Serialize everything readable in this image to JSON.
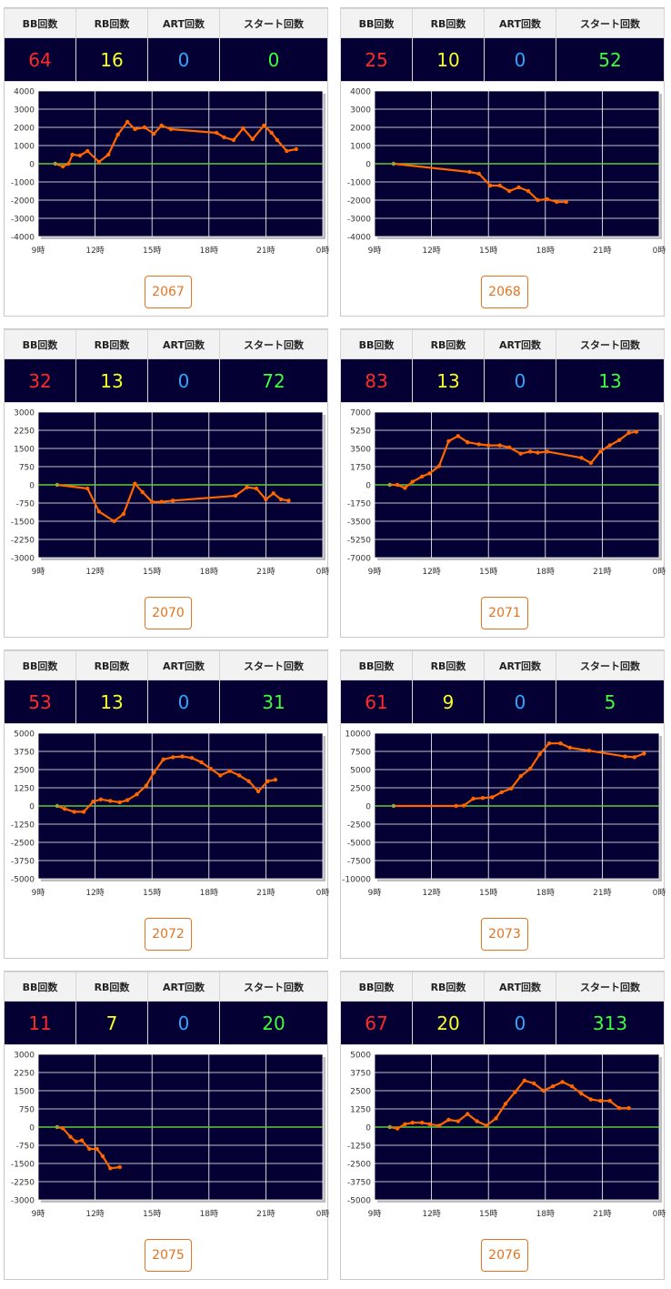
{
  "headers": {
    "bb": "BB回数",
    "rb": "RB回数",
    "art": "ART回数",
    "start": "スタート回数"
  },
  "x_axis": {
    "ticks": [
      "9時",
      "12時",
      "15時",
      "18時",
      "21時",
      "0時"
    ],
    "range": [
      9,
      24
    ]
  },
  "colors": {
    "plot_bg": "#040033",
    "line": "#ff6600",
    "zero_line": "#5ccc3a",
    "grid": "#ffffff"
  },
  "machines": [
    {
      "bb": "64",
      "rb": "16",
      "art": "0",
      "start": "0",
      "button": "2067",
      "chart_data": {
        "type": "line",
        "ylim": [
          -4000,
          4000
        ],
        "y_ticks": [
          "4000",
          "3000",
          "2000",
          "1000",
          "0",
          "-1000",
          "-2000",
          "-3000",
          "-4000"
        ],
        "x": [
          9.9,
          10.3,
          10.6,
          10.8,
          11.2,
          11.6,
          12.2,
          12.7,
          13.2,
          13.7,
          14.1,
          14.6,
          15.1,
          15.5,
          16.0,
          18.4,
          18.8,
          19.3,
          19.8,
          20.3,
          20.9,
          21.3,
          21.6,
          22.1,
          22.6
        ],
        "y": [
          0,
          -150,
          0,
          500,
          450,
          700,
          100,
          500,
          1600,
          2300,
          1900,
          2000,
          1650,
          2100,
          1900,
          1700,
          1450,
          1300,
          1950,
          1350,
          2100,
          1700,
          1300,
          700,
          800
        ]
      }
    },
    {
      "bb": "25",
      "rb": "10",
      "art": "0",
      "start": "52",
      "button": "2068",
      "chart_data": {
        "type": "line",
        "ylim": [
          -4000,
          4000
        ],
        "y_ticks": [
          "4000",
          "3000",
          "2000",
          "1000",
          "0",
          "-1000",
          "-2000",
          "-3000",
          "-4000"
        ],
        "x": [
          10.0,
          14.0,
          14.5,
          15.1,
          15.6,
          16.1,
          16.6,
          17.1,
          17.6,
          18.1,
          18.6,
          19.1
        ],
        "y": [
          0,
          -450,
          -550,
          -1200,
          -1200,
          -1500,
          -1300,
          -1500,
          -2000,
          -1950,
          -2100,
          -2100
        ]
      }
    },
    {
      "bb": "32",
      "rb": "13",
      "art": "0",
      "start": "72",
      "button": "2070",
      "chart_data": {
        "type": "line",
        "ylim": [
          -3000,
          3000
        ],
        "y_ticks": [
          "3000",
          "2250",
          "1500",
          "750",
          "0",
          "-750",
          "-1500",
          "-2250",
          "-3000"
        ],
        "x": [
          10.0,
          11.6,
          12.2,
          13.0,
          13.5,
          14.1,
          14.5,
          15.0,
          15.5,
          16.1,
          19.4,
          20.0,
          20.5,
          21.0,
          21.4,
          21.8,
          22.2
        ],
        "y": [
          0,
          -150,
          -1100,
          -1500,
          -1200,
          50,
          -300,
          -700,
          -700,
          -650,
          -450,
          -100,
          -150,
          -600,
          -350,
          -600,
          -650
        ]
      }
    },
    {
      "bb": "83",
      "rb": "13",
      "art": "0",
      "start": "13",
      "button": "2071",
      "chart_data": {
        "type": "line",
        "ylim": [
          -7000,
          7000
        ],
        "y_ticks": [
          "7000",
          "5250",
          "3500",
          "1750",
          "0",
          "-1750",
          "-3500",
          "-5250",
          "-7000"
        ],
        "x": [
          9.8,
          10.2,
          10.6,
          11.0,
          11.5,
          11.9,
          12.4,
          12.9,
          13.4,
          13.9,
          14.5,
          15.0,
          15.6,
          16.1,
          16.7,
          17.2,
          17.6,
          18.1,
          19.9,
          20.4,
          20.9,
          21.4,
          21.9,
          22.4,
          22.8
        ],
        "y": [
          0,
          0,
          -300,
          300,
          800,
          1100,
          1800,
          4200,
          4700,
          4100,
          3900,
          3800,
          3800,
          3600,
          3000,
          3200,
          3100,
          3200,
          2600,
          2100,
          3200,
          3800,
          4300,
          5000,
          5100
        ]
      }
    },
    {
      "bb": "53",
      "rb": "13",
      "art": "0",
      "start": "31",
      "button": "2072",
      "chart_data": {
        "type": "line",
        "ylim": [
          -5000,
          5000
        ],
        "y_ticks": [
          "5000",
          "3750",
          "2500",
          "1250",
          "0",
          "-1250",
          "-2500",
          "-3750",
          "-5000"
        ],
        "x": [
          10.0,
          10.4,
          10.9,
          11.4,
          11.9,
          12.3,
          12.8,
          13.3,
          13.7,
          14.2,
          14.7,
          15.1,
          15.6,
          16.1,
          16.6,
          17.1,
          17.6,
          18.1,
          18.6,
          19.1,
          19.6,
          20.1,
          20.6,
          21.1,
          21.5
        ],
        "y": [
          0,
          -200,
          -400,
          -400,
          300,
          450,
          350,
          250,
          400,
          800,
          1400,
          2300,
          3200,
          3350,
          3400,
          3300,
          3000,
          2550,
          2100,
          2400,
          2100,
          1700,
          1000,
          1700,
          1800
        ]
      }
    },
    {
      "bb": "61",
      "rb": "9",
      "art": "0",
      "start": "5",
      "button": "2073",
      "chart_data": {
        "type": "line",
        "ylim": [
          -10000,
          10000
        ],
        "y_ticks": [
          "10000",
          "7500",
          "5000",
          "2500",
          "0",
          "-2500",
          "-5000",
          "-7500",
          "-10000"
        ],
        "x": [
          10.0,
          13.3,
          13.7,
          14.2,
          14.7,
          15.2,
          15.7,
          16.2,
          16.7,
          17.2,
          17.7,
          18.2,
          18.8,
          19.3,
          20.3,
          22.2,
          22.7,
          23.2
        ],
        "y": [
          0,
          0,
          50,
          1000,
          1100,
          1200,
          1900,
          2400,
          4100,
          5100,
          7100,
          8600,
          8600,
          8000,
          7600,
          6800,
          6700,
          7200
        ]
      }
    },
    {
      "bb": "11",
      "rb": "7",
      "art": "0",
      "start": "20",
      "button": "2075",
      "chart_data": {
        "type": "line",
        "ylim": [
          -3000,
          3000
        ],
        "y_ticks": [
          "3000",
          "2250",
          "1500",
          "750",
          "0",
          "-750",
          "-1500",
          "-2250",
          "-3000"
        ],
        "x": [
          10.0,
          10.3,
          10.7,
          11.0,
          11.3,
          11.7,
          12.1,
          12.4,
          12.8,
          13.3
        ],
        "y": [
          0,
          -50,
          -400,
          -600,
          -550,
          -900,
          -900,
          -1200,
          -1700,
          -1650
        ]
      }
    },
    {
      "bb": "67",
      "rb": "20",
      "art": "0",
      "start": "313",
      "button": "2076",
      "chart_data": {
        "type": "line",
        "ylim": [
          -5000,
          5000
        ],
        "y_ticks": [
          "5000",
          "3750",
          "2500",
          "1250",
          "0",
          "-1250",
          "-2500",
          "-3750",
          "-5000"
        ],
        "x": [
          9.8,
          10.2,
          10.6,
          11.0,
          11.5,
          11.9,
          12.4,
          12.9,
          13.4,
          13.9,
          14.4,
          14.9,
          15.4,
          15.9,
          16.4,
          16.9,
          17.4,
          17.9,
          18.4,
          18.9,
          19.4,
          19.9,
          20.4,
          20.9,
          21.4,
          21.9,
          22.4
        ],
        "y": [
          0,
          -100,
          200,
          300,
          300,
          200,
          100,
          500,
          400,
          900,
          400,
          100,
          600,
          1600,
          2400,
          3200,
          3000,
          2500,
          2800,
          3100,
          2800,
          2300,
          1900,
          1800,
          1800,
          1300,
          1300
        ]
      }
    }
  ]
}
